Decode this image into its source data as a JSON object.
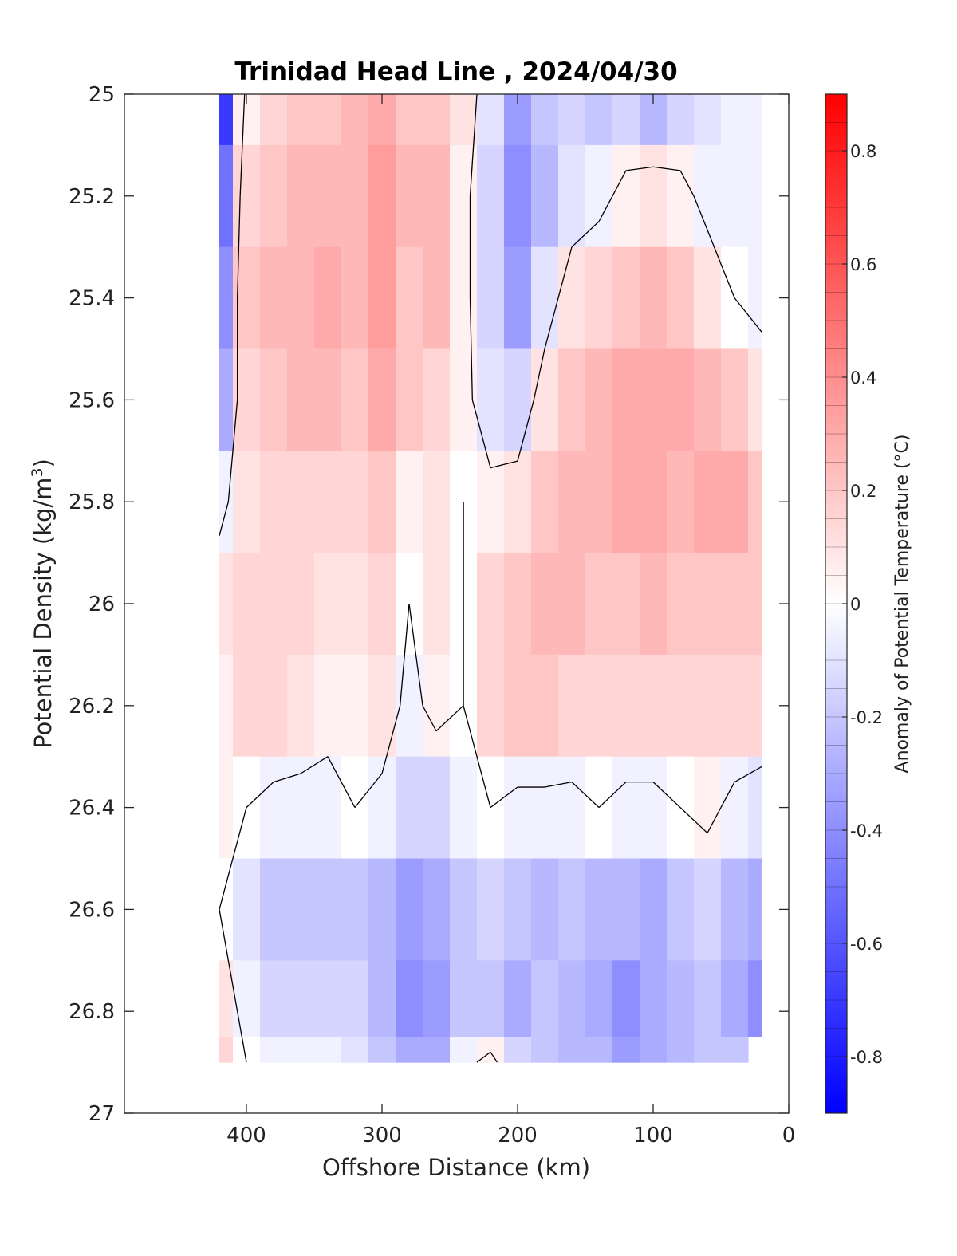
{
  "chart_data": {
    "type": "heatmap",
    "title": "Trinidad Head Line , 2024/04/30",
    "xlabel": "Offshore Distance (km)",
    "ylabel_main": "Potential Density (kg/m",
    "ylabel_sup": "3",
    "ylabel_tail": ")",
    "colorbar_label": "Anomaly of Potential Temperature (°C)",
    "xlim": [
      490,
      0
    ],
    "ylim": [
      25,
      27
    ],
    "x_ticks": [
      400,
      300,
      200,
      100,
      0
    ],
    "x_tick_labels": [
      "400",
      "300",
      "200",
      "100",
      "0"
    ],
    "y_ticks": [
      25,
      25.2,
      25.4,
      25.6,
      25.8,
      26,
      26.2,
      26.4,
      26.6,
      26.8,
      27
    ],
    "y_tick_labels": [
      "25",
      "25.2",
      "25.4",
      "25.6",
      "25.8",
      "26",
      "26.2",
      "26.4",
      "26.6",
      "26.8",
      "27"
    ],
    "clim": [
      -0.9,
      0.9
    ],
    "colorbar_ticks": [
      0.8,
      0.6,
      0.4,
      0.2,
      0,
      -0.2,
      -0.4,
      -0.6,
      -0.8
    ],
    "colorbar_tick_labels": [
      "0.8",
      "0.6",
      "0.4",
      "0.2",
      "0",
      "-0.2",
      "-0.4",
      "-0.6",
      "-0.8"
    ],
    "colormap": {
      "negative": "#0000ff",
      "zero": "#ffffff",
      "positive": "#ff0000"
    },
    "data_x_km": [
      420,
      400,
      380,
      360,
      340,
      320,
      300,
      280,
      260,
      240,
      220,
      200,
      180,
      160,
      140,
      120,
      100,
      80,
      60,
      40,
      20
    ],
    "data_sigma": [
      25.0,
      25.2,
      25.4,
      25.6,
      25.8,
      26.0,
      26.2,
      26.4,
      26.6,
      26.8,
      26.9
    ],
    "anomaly_values": [
      [
        -0.7,
        0.05,
        0.15,
        0.2,
        0.2,
        0.25,
        0.3,
        0.2,
        0.2,
        0.1,
        -0.1,
        -0.35,
        -0.2,
        -0.15,
        -0.2,
        -0.15,
        -0.25,
        -0.15,
        -0.1,
        -0.05,
        -0.05
      ],
      [
        -0.5,
        0.15,
        0.2,
        0.25,
        0.25,
        0.25,
        0.35,
        0.25,
        0.25,
        0.05,
        -0.15,
        -0.4,
        -0.25,
        -0.1,
        -0.05,
        0.05,
        0.1,
        0.05,
        -0.05,
        -0.05,
        -0.05
      ],
      [
        -0.4,
        0.2,
        0.25,
        0.25,
        0.3,
        0.25,
        0.35,
        0.2,
        0.25,
        0.05,
        -0.15,
        -0.35,
        -0.1,
        0.1,
        0.15,
        0.2,
        0.25,
        0.2,
        0.1,
        0.0,
        -0.05
      ],
      [
        -0.3,
        0.15,
        0.2,
        0.25,
        0.25,
        0.2,
        0.3,
        0.2,
        0.15,
        0.05,
        -0.1,
        -0.15,
        0.1,
        0.2,
        0.25,
        0.3,
        0.3,
        0.3,
        0.25,
        0.2,
        0.1
      ],
      [
        -0.05,
        0.1,
        0.15,
        0.15,
        0.15,
        0.15,
        0.2,
        0.05,
        0.1,
        0.0,
        0.05,
        0.1,
        0.2,
        0.25,
        0.25,
        0.3,
        0.3,
        0.25,
        0.3,
        0.3,
        0.2
      ],
      [
        0.1,
        0.15,
        0.15,
        0.15,
        0.1,
        0.1,
        0.15,
        0.0,
        0.1,
        0.0,
        0.15,
        0.2,
        0.25,
        0.25,
        0.2,
        0.2,
        0.25,
        0.2,
        0.2,
        0.2,
        0.2
      ],
      [
        0.05,
        0.15,
        0.15,
        0.1,
        0.05,
        0.05,
        0.1,
        -0.05,
        0.05,
        0.0,
        0.15,
        0.2,
        0.2,
        0.15,
        0.15,
        0.15,
        0.15,
        0.15,
        0.15,
        0.15,
        0.15
      ],
      [
        0.05,
        0.0,
        -0.05,
        -0.05,
        -0.05,
        0.0,
        -0.05,
        -0.15,
        -0.15,
        -0.05,
        0.0,
        -0.05,
        -0.05,
        -0.05,
        0.0,
        -0.05,
        -0.05,
        0.0,
        0.05,
        -0.05,
        -0.1
      ],
      [
        0.0,
        -0.1,
        -0.2,
        -0.2,
        -0.2,
        -0.2,
        -0.25,
        -0.35,
        -0.3,
        -0.2,
        -0.15,
        -0.2,
        -0.25,
        -0.2,
        -0.25,
        -0.25,
        -0.3,
        -0.2,
        -0.15,
        -0.25,
        -0.3
      ],
      [
        0.1,
        -0.05,
        -0.15,
        -0.15,
        -0.15,
        -0.15,
        -0.25,
        -0.4,
        -0.35,
        -0.2,
        -0.2,
        -0.3,
        -0.2,
        -0.25,
        -0.3,
        -0.4,
        -0.3,
        -0.25,
        -0.2,
        -0.3,
        -0.4
      ],
      [
        0.15,
        0.0,
        -0.05,
        -0.05,
        -0.05,
        -0.1,
        -0.2,
        -0.3,
        -0.3,
        -0.05,
        0.05,
        -0.15,
        -0.2,
        -0.25,
        -0.25,
        -0.35,
        -0.3,
        -0.25,
        -0.2,
        -0.2,
        null
      ]
    ]
  }
}
